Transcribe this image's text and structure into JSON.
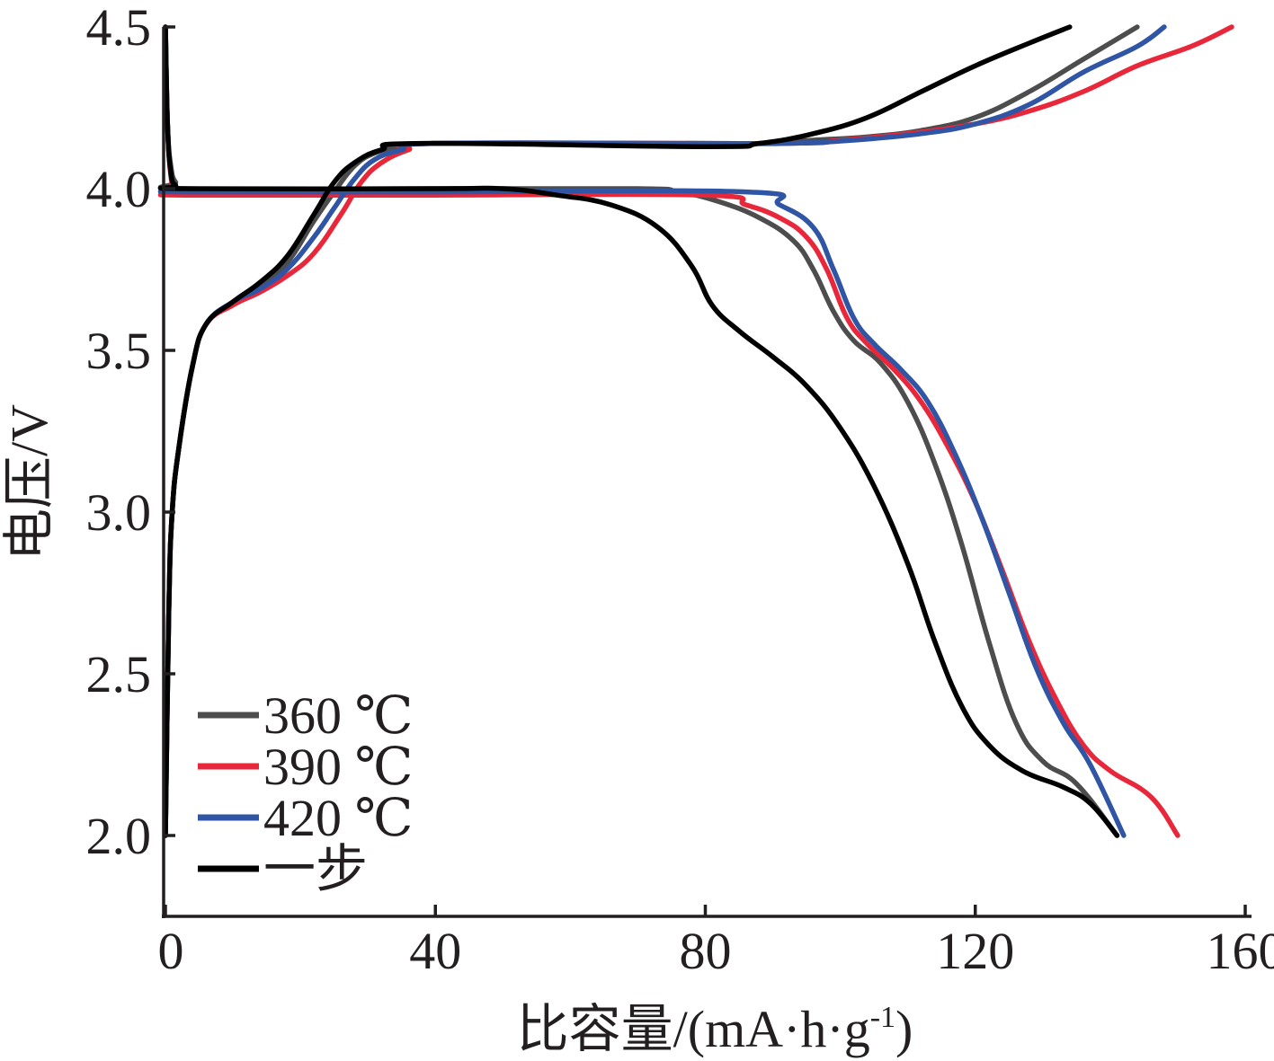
{
  "chart_data": {
    "type": "line",
    "title": "",
    "xlabel": "比容量/(mA·h·g-1)",
    "xlabel_main": "比容量/(mA·h·g",
    "xlabel_sup": "-1",
    "xlabel_close": ")",
    "ylabel": "电压/V",
    "xlim": [
      0,
      160
    ],
    "ylim": [
      1.75,
      4.5
    ],
    "xticks": [
      0,
      40,
      80,
      120,
      160
    ],
    "xtick_labels": [
      "0",
      "40",
      "80",
      "120",
      "160"
    ],
    "yticks": [
      2.0,
      2.5,
      3.0,
      3.5,
      4.0,
      4.5
    ],
    "ytick_labels": [
      "2.0",
      "2.5",
      "3.0",
      "3.5",
      "4.0",
      "4.5"
    ],
    "legend_position": "bottom-left",
    "series": [
      {
        "name": "360 ℃",
        "color": "#4d4d4d",
        "charge": [
          [
            0,
            2.0
          ],
          [
            0.5,
            2.7
          ],
          [
            1,
            3.0
          ],
          [
            2,
            3.2
          ],
          [
            4,
            3.45
          ],
          [
            6,
            3.58
          ],
          [
            10,
            3.65
          ],
          [
            14,
            3.7
          ],
          [
            18,
            3.77
          ],
          [
            22,
            3.9
          ],
          [
            25,
            3.99
          ],
          [
            28,
            4.07
          ],
          [
            31,
            4.11
          ],
          [
            35,
            4.13
          ],
          [
            40,
            4.14
          ],
          [
            80,
            4.14
          ],
          [
            88,
            4.14
          ],
          [
            96,
            4.15
          ],
          [
            104,
            4.16
          ],
          [
            112,
            4.18
          ],
          [
            120,
            4.22
          ],
          [
            128,
            4.3
          ],
          [
            136,
            4.4
          ],
          [
            144,
            4.5
          ]
        ],
        "discharge": [
          [
            0,
            4.5
          ],
          [
            0.3,
            4.2
          ],
          [
            0.8,
            4.07
          ],
          [
            1.5,
            4.02
          ],
          [
            3,
            4.0
          ],
          [
            40,
            4.0
          ],
          [
            70,
            4.0
          ],
          [
            76,
            3.99
          ],
          [
            82,
            3.96
          ],
          [
            88,
            3.91
          ],
          [
            93,
            3.84
          ],
          [
            96,
            3.75
          ],
          [
            99,
            3.62
          ],
          [
            102,
            3.53
          ],
          [
            106,
            3.46
          ],
          [
            110,
            3.34
          ],
          [
            114,
            3.15
          ],
          [
            118,
            2.9
          ],
          [
            122,
            2.6
          ],
          [
            126,
            2.35
          ],
          [
            130,
            2.23
          ],
          [
            135,
            2.16
          ],
          [
            141,
            2.0
          ]
        ]
      },
      {
        "name": "390 ℃",
        "color": "#e8273a",
        "charge": [
          [
            0,
            2.0
          ],
          [
            0.5,
            2.7
          ],
          [
            1,
            3.0
          ],
          [
            2,
            3.2
          ],
          [
            4,
            3.45
          ],
          [
            6,
            3.58
          ],
          [
            10,
            3.64
          ],
          [
            14,
            3.68
          ],
          [
            18,
            3.73
          ],
          [
            22,
            3.8
          ],
          [
            26,
            3.92
          ],
          [
            29,
            4.02
          ],
          [
            32,
            4.08
          ],
          [
            36,
            4.12
          ],
          [
            40,
            4.14
          ],
          [
            90,
            4.14
          ],
          [
            100,
            4.15
          ],
          [
            110,
            4.17
          ],
          [
            120,
            4.2
          ],
          [
            128,
            4.24
          ],
          [
            136,
            4.3
          ],
          [
            144,
            4.38
          ],
          [
            152,
            4.44
          ],
          [
            158,
            4.5
          ]
        ],
        "discharge": [
          [
            0,
            4.5
          ],
          [
            0.3,
            4.2
          ],
          [
            0.8,
            4.04
          ],
          [
            1.5,
            3.99
          ],
          [
            3,
            3.98
          ],
          [
            40,
            3.98
          ],
          [
            80,
            3.98
          ],
          [
            86,
            3.95
          ],
          [
            91,
            3.91
          ],
          [
            95,
            3.85
          ],
          [
            98,
            3.75
          ],
          [
            101,
            3.6
          ],
          [
            104,
            3.52
          ],
          [
            108,
            3.44
          ],
          [
            112,
            3.34
          ],
          [
            116,
            3.2
          ],
          [
            120,
            3.03
          ],
          [
            124,
            2.82
          ],
          [
            128,
            2.6
          ],
          [
            132,
            2.42
          ],
          [
            136,
            2.28
          ],
          [
            140,
            2.2
          ],
          [
            146,
            2.12
          ],
          [
            150,
            2.0
          ]
        ]
      },
      {
        "name": "420 ℃",
        "color": "#2f55a4",
        "charge": [
          [
            0,
            2.0
          ],
          [
            0.5,
            2.7
          ],
          [
            1,
            3.0
          ],
          [
            2,
            3.2
          ],
          [
            4,
            3.45
          ],
          [
            6,
            3.58
          ],
          [
            10,
            3.65
          ],
          [
            14,
            3.69
          ],
          [
            18,
            3.75
          ],
          [
            22,
            3.85
          ],
          [
            25,
            3.94
          ],
          [
            28,
            4.03
          ],
          [
            31,
            4.09
          ],
          [
            35,
            4.12
          ],
          [
            40,
            4.14
          ],
          [
            80,
            4.14
          ],
          [
            92,
            4.14
          ],
          [
            102,
            4.15
          ],
          [
            112,
            4.17
          ],
          [
            120,
            4.2
          ],
          [
            128,
            4.26
          ],
          [
            136,
            4.36
          ],
          [
            144,
            4.44
          ],
          [
            148,
            4.5
          ]
        ],
        "discharge": [
          [
            0,
            4.5
          ],
          [
            0.3,
            4.2
          ],
          [
            0.8,
            4.05
          ],
          [
            1.5,
            4.0
          ],
          [
            3,
            3.99
          ],
          [
            40,
            3.99
          ],
          [
            86,
            3.99
          ],
          [
            91,
            3.95
          ],
          [
            96,
            3.88
          ],
          [
            99,
            3.75
          ],
          [
            102,
            3.6
          ],
          [
            105,
            3.52
          ],
          [
            109,
            3.44
          ],
          [
            113,
            3.34
          ],
          [
            117,
            3.18
          ],
          [
            121,
            2.98
          ],
          [
            125,
            2.75
          ],
          [
            129,
            2.52
          ],
          [
            133,
            2.35
          ],
          [
            137,
            2.22
          ],
          [
            142,
            2.0
          ]
        ]
      },
      {
        "name": "一步",
        "color": "#000000",
        "charge": [
          [
            0,
            2.0
          ],
          [
            0.5,
            2.7
          ],
          [
            1,
            3.0
          ],
          [
            2,
            3.2
          ],
          [
            4,
            3.45
          ],
          [
            6,
            3.58
          ],
          [
            10,
            3.65
          ],
          [
            14,
            3.71
          ],
          [
            18,
            3.79
          ],
          [
            22,
            3.92
          ],
          [
            25,
            4.02
          ],
          [
            28,
            4.08
          ],
          [
            32,
            4.12
          ],
          [
            38,
            4.14
          ],
          [
            80,
            4.13
          ],
          [
            88,
            4.14
          ],
          [
            96,
            4.17
          ],
          [
            104,
            4.22
          ],
          [
            112,
            4.3
          ],
          [
            120,
            4.38
          ],
          [
            128,
            4.45
          ],
          [
            134,
            4.5
          ]
        ],
        "discharge": [
          [
            0,
            4.5
          ],
          [
            0.3,
            4.2
          ],
          [
            0.8,
            4.05
          ],
          [
            1.5,
            4.01
          ],
          [
            3,
            4.0
          ],
          [
            40,
            4.0
          ],
          [
            50,
            4.0
          ],
          [
            58,
            3.98
          ],
          [
            66,
            3.95
          ],
          [
            73,
            3.88
          ],
          [
            78,
            3.76
          ],
          [
            81,
            3.64
          ],
          [
            85,
            3.56
          ],
          [
            90,
            3.48
          ],
          [
            95,
            3.39
          ],
          [
            100,
            3.26
          ],
          [
            105,
            3.08
          ],
          [
            110,
            2.84
          ],
          [
            114,
            2.6
          ],
          [
            118,
            2.4
          ],
          [
            122,
            2.28
          ],
          [
            127,
            2.2
          ],
          [
            133,
            2.15
          ],
          [
            137,
            2.1
          ],
          [
            141,
            2.0
          ]
        ]
      }
    ]
  }
}
